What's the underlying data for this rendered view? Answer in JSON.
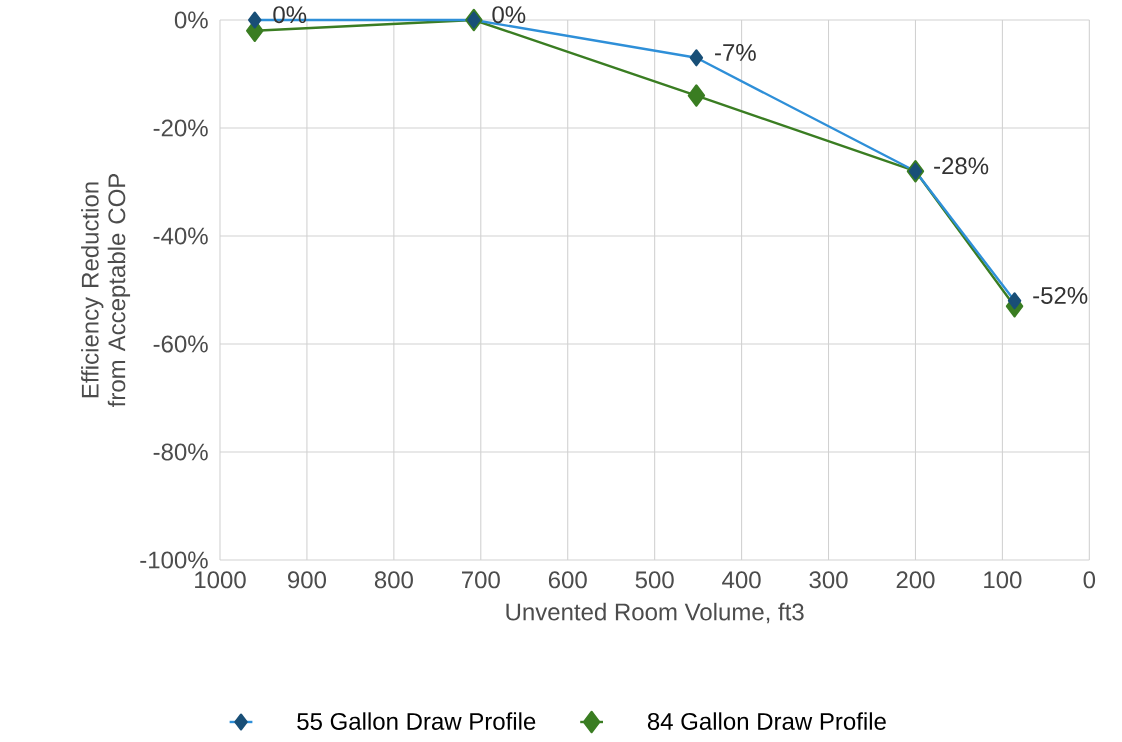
{
  "chart_data": {
    "type": "line",
    "xlabel": "Unvented Room Volume, ft3",
    "ylabel": "Efficiency Reduction from Acceptable COP",
    "x": [
      960,
      708,
      452,
      200,
      86
    ],
    "series": [
      {
        "name": "55 Gallon Draw Profile",
        "color": "#2e8fd8",
        "values": [
          0,
          0,
          -7,
          -28,
          -52
        ],
        "value_labels": [
          "0%",
          "0%",
          "-7%",
          "-28%",
          "-52%"
        ]
      },
      {
        "name": "84 Gallon Draw Profile",
        "color": "#3a7d22",
        "values": [
          -2,
          0,
          -14,
          -28,
          -53
        ]
      }
    ],
    "xlim": [
      1000,
      0
    ],
    "xticks": [
      1000,
      900,
      800,
      700,
      600,
      500,
      400,
      300,
      200,
      100,
      0
    ],
    "ylim": [
      -100,
      0
    ],
    "yticks": [
      {
        "value": 0,
        "label": "0%"
      },
      {
        "value": -20,
        "label": "-20%"
      },
      {
        "value": -40,
        "label": "-40%"
      },
      {
        "value": -60,
        "label": "-60%"
      },
      {
        "value": -80,
        "label": "-80%"
      },
      {
        "value": -100,
        "label": "-100%"
      }
    ],
    "grid": true,
    "legend": "bottom",
    "marker": "diamond",
    "line_style": "solid"
  }
}
